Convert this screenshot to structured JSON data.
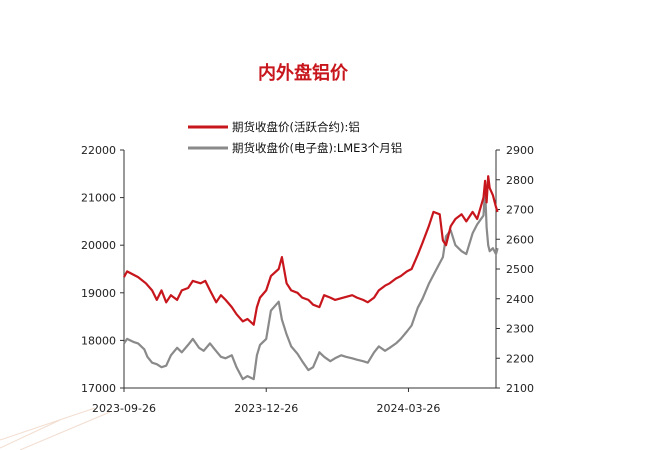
{
  "chart_data": {
    "type": "line",
    "title": "内外盘铝价",
    "x_tick_labels": [
      "2023-09-26",
      "2023-12-26",
      "2024-03-26"
    ],
    "x_range": [
      "2023-09-26",
      "2024-05-21"
    ],
    "left_axis": {
      "min": 17000,
      "max": 22000,
      "step": 1000,
      "ticks": [
        "22000",
        "21000",
        "20000",
        "19000",
        "18000",
        "17000"
      ]
    },
    "right_axis": {
      "min": 2100,
      "max": 2900,
      "step": 100,
      "ticks": [
        "2900",
        "2800",
        "2700",
        "2600",
        "2500",
        "2400",
        "2300",
        "2200",
        "2100"
      ]
    },
    "colors": {
      "red": "#c8161d",
      "gray": "#8a8a8a",
      "title": "#c8161d"
    },
    "series": [
      {
        "name": "期货收盘价(活跃合约):铝",
        "axis": "left",
        "color": "#c8161d",
        "points": [
          [
            "2023-09-26",
            19330
          ],
          [
            "2023-09-28",
            19450
          ],
          [
            "2023-10-05",
            19330
          ],
          [
            "2023-10-10",
            19200
          ],
          [
            "2023-10-14",
            19050
          ],
          [
            "2023-10-17",
            18850
          ],
          [
            "2023-10-20",
            19050
          ],
          [
            "2023-10-23",
            18800
          ],
          [
            "2023-10-26",
            18950
          ],
          [
            "2023-10-30",
            18850
          ],
          [
            "2023-11-02",
            19050
          ],
          [
            "2023-11-06",
            19100
          ],
          [
            "2023-11-09",
            19250
          ],
          [
            "2023-11-14",
            19200
          ],
          [
            "2023-11-17",
            19250
          ],
          [
            "2023-11-20",
            19050
          ],
          [
            "2023-11-24",
            18800
          ],
          [
            "2023-11-27",
            18950
          ],
          [
            "2023-11-30",
            18850
          ],
          [
            "2023-12-04",
            18700
          ],
          [
            "2023-12-07",
            18550
          ],
          [
            "2023-12-11",
            18400
          ],
          [
            "2023-12-14",
            18450
          ],
          [
            "2023-12-18",
            18330
          ],
          [
            "2023-12-20",
            18700
          ],
          [
            "2023-12-22",
            18900
          ],
          [
            "2023-12-26",
            19050
          ],
          [
            "2023-12-29",
            19350
          ],
          [
            "2024-01-03",
            19500
          ],
          [
            "2024-01-05",
            19750
          ],
          [
            "2024-01-08",
            19200
          ],
          [
            "2024-01-11",
            19050
          ],
          [
            "2024-01-15",
            19000
          ],
          [
            "2024-01-18",
            18900
          ],
          [
            "2024-01-22",
            18850
          ],
          [
            "2024-01-25",
            18750
          ],
          [
            "2024-01-29",
            18700
          ],
          [
            "2024-02-01",
            18950
          ],
          [
            "2024-02-05",
            18900
          ],
          [
            "2024-02-08",
            18850
          ],
          [
            "2024-02-19",
            18950
          ],
          [
            "2024-02-22",
            18900
          ],
          [
            "2024-02-26",
            18850
          ],
          [
            "2024-02-29",
            18800
          ],
          [
            "2024-03-04",
            18900
          ],
          [
            "2024-03-07",
            19050
          ],
          [
            "2024-03-11",
            19150
          ],
          [
            "2024-03-14",
            19200
          ],
          [
            "2024-03-18",
            19300
          ],
          [
            "2024-03-21",
            19350
          ],
          [
            "2024-03-25",
            19450
          ],
          [
            "2024-03-28",
            19500
          ],
          [
            "2024-04-01",
            19800
          ],
          [
            "2024-04-04",
            20050
          ],
          [
            "2024-04-08",
            20400
          ],
          [
            "2024-04-11",
            20700
          ],
          [
            "2024-04-15",
            20650
          ],
          [
            "2024-04-17",
            20100
          ],
          [
            "2024-04-19",
            20000
          ],
          [
            "2024-04-22",
            20400
          ],
          [
            "2024-04-25",
            20550
          ],
          [
            "2024-04-29",
            20650
          ],
          [
            "2024-05-02",
            20500
          ],
          [
            "2024-05-06",
            20700
          ],
          [
            "2024-05-09",
            20550
          ],
          [
            "2024-05-13",
            21000
          ],
          [
            "2024-05-14",
            21350
          ],
          [
            "2024-05-15",
            20900
          ],
          [
            "2024-05-16",
            21450
          ],
          [
            "2024-05-17",
            21200
          ],
          [
            "2024-05-19",
            21050
          ],
          [
            "2024-05-21",
            20800
          ],
          [
            "2024-05-22",
            20700
          ]
        ]
      },
      {
        "name": "期货收盘价(电子盘):LME3个月铝",
        "axis": "right",
        "color": "#8a8a8a",
        "points": [
          [
            "2023-09-26",
            2250
          ],
          [
            "2023-09-28",
            2265
          ],
          [
            "2023-10-02",
            2255
          ],
          [
            "2023-10-05",
            2250
          ],
          [
            "2023-10-09",
            2230
          ],
          [
            "2023-10-11",
            2205
          ],
          [
            "2023-10-14",
            2185
          ],
          [
            "2023-10-17",
            2180
          ],
          [
            "2023-10-20",
            2170
          ],
          [
            "2023-10-23",
            2175
          ],
          [
            "2023-10-26",
            2210
          ],
          [
            "2023-10-30",
            2235
          ],
          [
            "2023-11-02",
            2220
          ],
          [
            "2023-11-06",
            2245
          ],
          [
            "2023-11-09",
            2265
          ],
          [
            "2023-11-13",
            2235
          ],
          [
            "2023-11-16",
            2225
          ],
          [
            "2023-11-20",
            2250
          ],
          [
            "2023-11-23",
            2230
          ],
          [
            "2023-11-27",
            2205
          ],
          [
            "2023-11-30",
            2200
          ],
          [
            "2023-12-04",
            2210
          ],
          [
            "2023-12-07",
            2170
          ],
          [
            "2023-12-11",
            2130
          ],
          [
            "2023-12-14",
            2140
          ],
          [
            "2023-12-18",
            2130
          ],
          [
            "2023-12-20",
            2210
          ],
          [
            "2023-12-22",
            2245
          ],
          [
            "2023-12-26",
            2265
          ],
          [
            "2023-12-29",
            2360
          ],
          [
            "2024-01-03",
            2390
          ],
          [
            "2024-01-05",
            2330
          ],
          [
            "2024-01-08",
            2280
          ],
          [
            "2024-01-11",
            2240
          ],
          [
            "2024-01-15",
            2215
          ],
          [
            "2024-01-18",
            2190
          ],
          [
            "2024-01-22",
            2160
          ],
          [
            "2024-01-25",
            2170
          ],
          [
            "2024-01-29",
            2220
          ],
          [
            "2024-02-01",
            2205
          ],
          [
            "2024-02-05",
            2190
          ],
          [
            "2024-02-08",
            2200
          ],
          [
            "2024-02-12",
            2210
          ],
          [
            "2024-02-15",
            2205
          ],
          [
            "2024-02-19",
            2200
          ],
          [
            "2024-02-22",
            2195
          ],
          [
            "2024-02-26",
            2190
          ],
          [
            "2024-02-29",
            2185
          ],
          [
            "2024-03-04",
            2220
          ],
          [
            "2024-03-07",
            2240
          ],
          [
            "2024-03-11",
            2225
          ],
          [
            "2024-03-14",
            2235
          ],
          [
            "2024-03-18",
            2250
          ],
          [
            "2024-03-21",
            2265
          ],
          [
            "2024-03-25",
            2290
          ],
          [
            "2024-03-28",
            2310
          ],
          [
            "2024-04-01",
            2370
          ],
          [
            "2024-04-04",
            2400
          ],
          [
            "2024-04-08",
            2450
          ],
          [
            "2024-04-11",
            2480
          ],
          [
            "2024-04-15",
            2520
          ],
          [
            "2024-04-17",
            2540
          ],
          [
            "2024-04-19",
            2610
          ],
          [
            "2024-04-22",
            2630
          ],
          [
            "2024-04-25",
            2580
          ],
          [
            "2024-04-29",
            2560
          ],
          [
            "2024-05-02",
            2550
          ],
          [
            "2024-05-06",
            2620
          ],
          [
            "2024-05-09",
            2650
          ],
          [
            "2024-05-13",
            2680
          ],
          [
            "2024-05-14",
            2770
          ],
          [
            "2024-05-15",
            2640
          ],
          [
            "2024-05-16",
            2580
          ],
          [
            "2024-05-17",
            2560
          ],
          [
            "2024-05-19",
            2570
          ],
          [
            "2024-05-21",
            2550
          ],
          [
            "2024-05-22",
            2570
          ]
        ]
      }
    ],
    "legend_position": "top"
  }
}
